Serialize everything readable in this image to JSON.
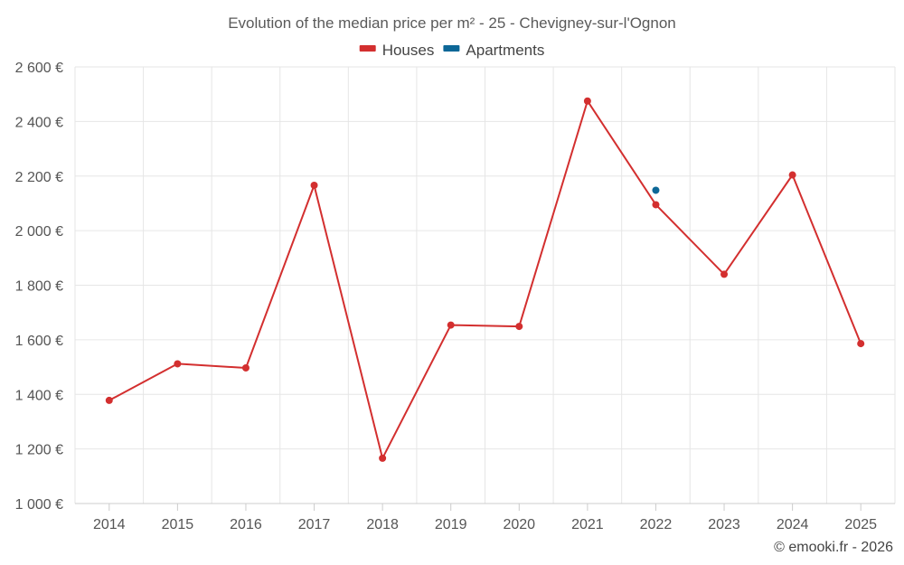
{
  "chart_data": {
    "type": "line",
    "title": "Evolution of the median price per m² - 25 - Chevigney-sur-l'Ognon",
    "xlabel": "",
    "ylabel": "",
    "categories": [
      "2014",
      "2015",
      "2016",
      "2017",
      "2018",
      "2019",
      "2020",
      "2021",
      "2022",
      "2023",
      "2024",
      "2025"
    ],
    "ylim": [
      1000,
      2600
    ],
    "yticks": [
      1000,
      1200,
      1400,
      1600,
      1800,
      2000,
      2200,
      2400,
      2600
    ],
    "ytick_labels": [
      "1 000 €",
      "1 200 €",
      "1 400 €",
      "1 600 €",
      "1 800 €",
      "2 000 €",
      "2 200 €",
      "2 400 €",
      "2 600 €"
    ],
    "grid": true,
    "legend_position": "top-center",
    "series": [
      {
        "name": "Houses",
        "color": "#d32f2f",
        "values": [
          1378,
          1512,
          1497,
          2166,
          1166,
          1654,
          1649,
          2475,
          2095,
          1840,
          2204,
          1586
        ]
      },
      {
        "name": "Apartments",
        "color": "#0d6797",
        "values": [
          null,
          null,
          null,
          null,
          null,
          null,
          null,
          null,
          2148,
          null,
          null,
          null
        ]
      }
    ]
  },
  "credit": "© emooki.fr - 2026"
}
